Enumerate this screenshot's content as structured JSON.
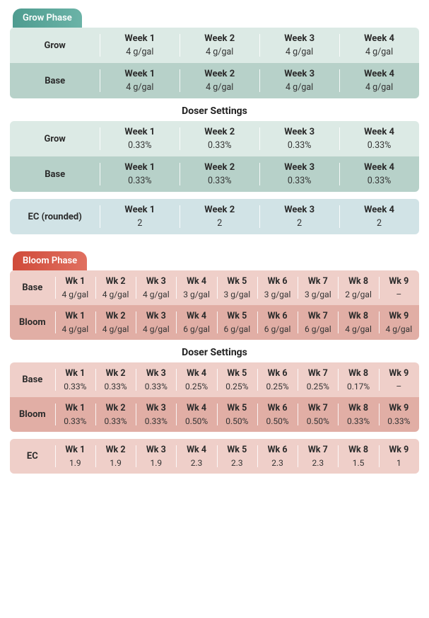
{
  "palette": {
    "grow_light": "#dceae5",
    "grow_dark": "#b7d1c9",
    "grow_ec": "#d1e3e6",
    "grow_tag_from": "#4f9c90",
    "grow_tag_to": "#6bb3a7",
    "bloom_light": "#efcfc9",
    "bloom_dark": "#e1aea5",
    "bloom_tag_from": "#d04b3a",
    "bloom_tag_to": "#e07060",
    "text_primary": "#2b2b2b",
    "separator": "rgba(255,255,255,0.85)"
  },
  "grow": {
    "phase_label": "Grow Phase",
    "label_col_width": "22%",
    "week_headers": [
      "Week 1",
      "Week 2",
      "Week 3",
      "Week 4"
    ],
    "dosage": {
      "rows": [
        {
          "label": "Grow",
          "shade": "light",
          "values": [
            "4 g/gal",
            "4 g/gal",
            "4 g/gal",
            "4 g/gal"
          ]
        },
        {
          "label": "Base",
          "shade": "dark",
          "values": [
            "4 g/gal",
            "4 g/gal",
            "4 g/gal",
            "4 g/gal"
          ]
        }
      ]
    },
    "doser_title": "Doser Settings",
    "doser": {
      "rows": [
        {
          "label": "Grow",
          "shade": "light",
          "values": [
            "0.33%",
            "0.33%",
            "0.33%",
            "0.33%"
          ]
        },
        {
          "label": "Base",
          "shade": "dark",
          "values": [
            "0.33%",
            "0.33%",
            "0.33%",
            "0.33%"
          ]
        }
      ]
    },
    "ec": {
      "label": "EC (rounded)",
      "shade": "ec",
      "values": [
        "2",
        "2",
        "2",
        "2"
      ]
    }
  },
  "bloom": {
    "phase_label": "Bloom Phase",
    "label_col_width": "11%",
    "week_headers": [
      "Wk 1",
      "Wk 2",
      "Wk 3",
      "Wk 4",
      "Wk 5",
      "Wk 6",
      "Wk 7",
      "Wk 8",
      "Wk 9"
    ],
    "dosage": {
      "rows": [
        {
          "label": "Base",
          "shade": "light",
          "values": [
            "4 g/gal",
            "4 g/gal",
            "4 g/gal",
            "3 g/gal",
            "3 g/gal",
            "3 g/gal",
            "3 g/gal",
            "2 g/gal",
            "–"
          ]
        },
        {
          "label": "Bloom",
          "shade": "dark",
          "values": [
            "4 g/gal",
            "4 g/gal",
            "4 g/gal",
            "6 g/gal",
            "6 g/gal",
            "6 g/gal",
            "6 g/gal",
            "4 g/gal",
            "4 g/gal"
          ]
        }
      ]
    },
    "doser_title": "Doser Settings",
    "doser": {
      "rows": [
        {
          "label": "Base",
          "shade": "light",
          "values": [
            "0.33%",
            "0.33%",
            "0.33%",
            "0.25%",
            "0.25%",
            "0.25%",
            "0.25%",
            "0.17%",
            "–"
          ]
        },
        {
          "label": "Bloom",
          "shade": "dark",
          "values": [
            "0.33%",
            "0.33%",
            "0.33%",
            "0.50%",
            "0.50%",
            "0.50%",
            "0.50%",
            "0.33%",
            "0.33%"
          ]
        }
      ]
    },
    "ec": {
      "label": "EC",
      "shade": "light",
      "values": [
        "1.9",
        "1.9",
        "1.9",
        "2.3",
        "2.3",
        "2.3",
        "2.3",
        "1.5",
        "1"
      ]
    }
  }
}
